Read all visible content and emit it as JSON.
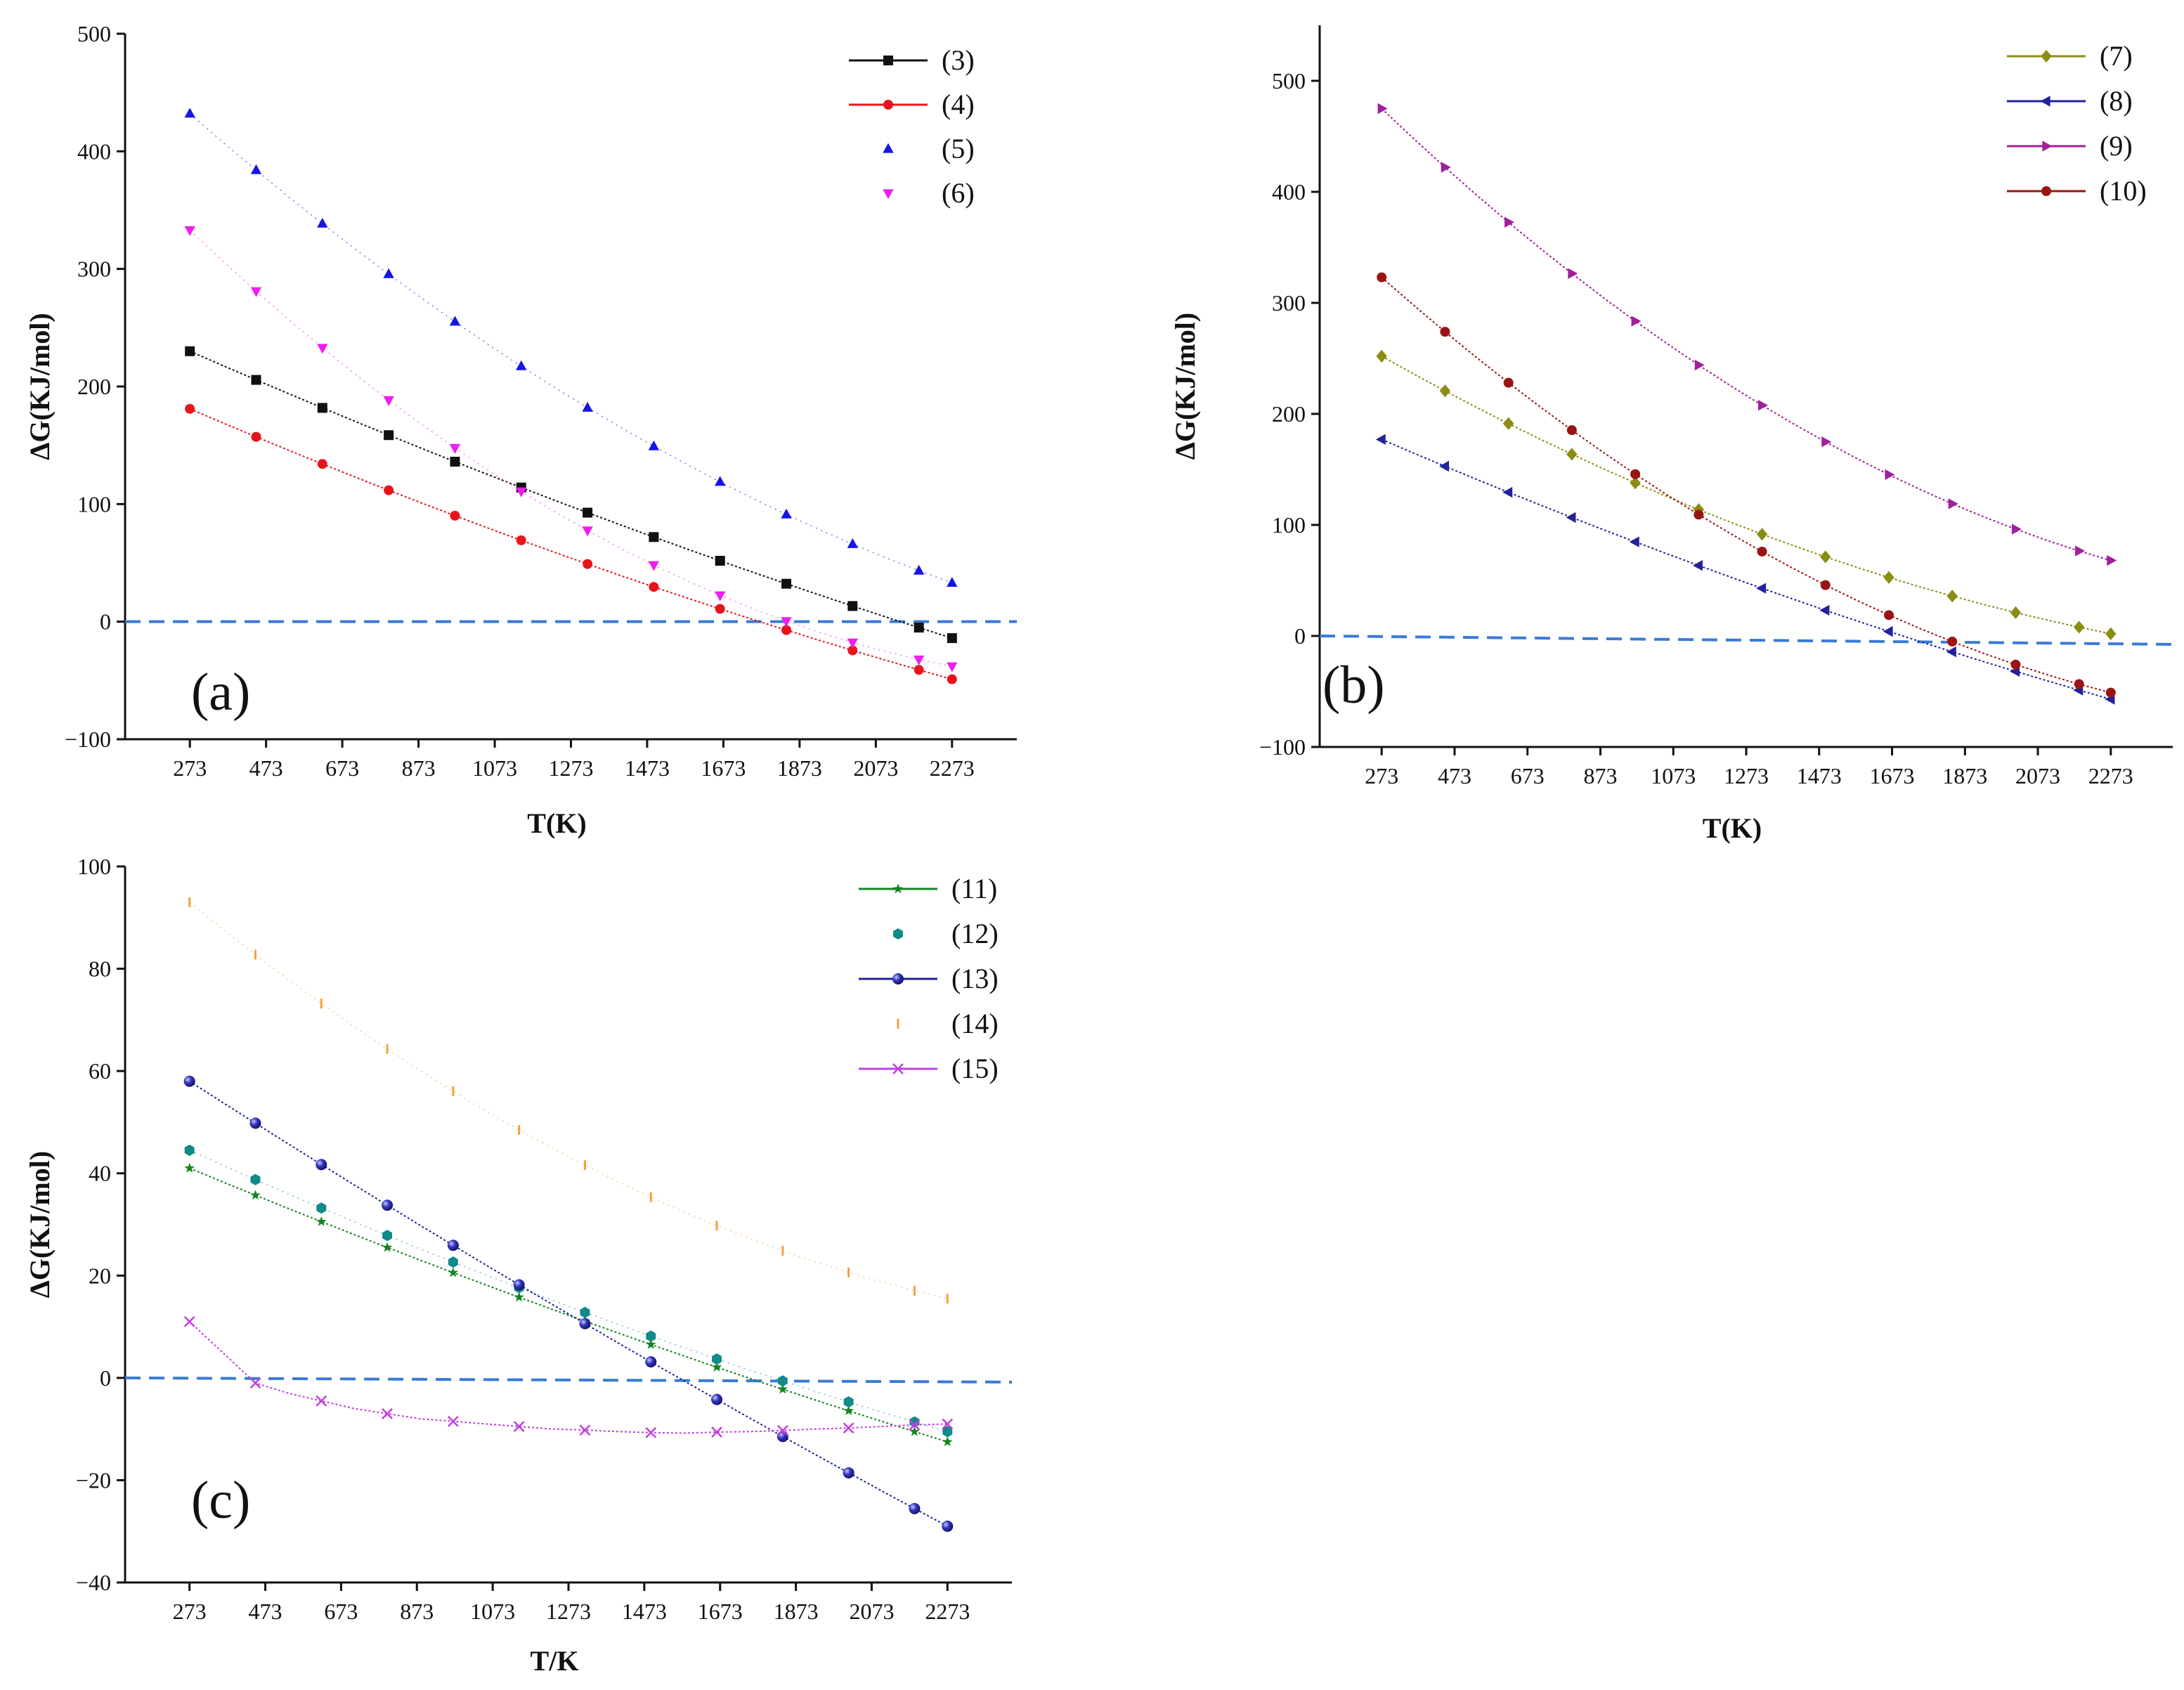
{
  "chart_data": [
    {
      "type": "line",
      "panel_label": "(a)",
      "xlabel": "T(K)",
      "ylabel": "ΔG(KJ/mol)",
      "xlim": [
        103,
        2443
      ],
      "ylim": [
        -100,
        500
      ],
      "xticks": [
        273,
        473,
        673,
        873,
        1073,
        1273,
        1473,
        1673,
        1873,
        2073,
        2273
      ],
      "xtick_labels": [
        "273",
        "473",
        "673",
        "873",
        "1073",
        "1273",
        "1473",
        "1673",
        "1873",
        "2073",
        "2273"
      ],
      "yticks": [
        -100,
        0,
        100,
        200,
        300,
        400,
        500
      ],
      "ytick_labels": [
        "−100",
        "0",
        "100",
        "200",
        "300",
        "400",
        "500"
      ],
      "legend_position": "top-right",
      "reference_line": 0,
      "series": [
        {
          "name": "(3)",
          "color": "#111111",
          "marker": "square",
          "line": true,
          "y_start": 230,
          "y_end": -14,
          "curvature": -10
        },
        {
          "name": "(4)",
          "color": "#e8141c",
          "marker": "circle",
          "line": true,
          "y_start": 181,
          "y_end": -49,
          "curvature": -12
        },
        {
          "name": "(5)",
          "color": "#1515e8",
          "marker": "triangle-up",
          "line": false,
          "y_start": 432,
          "y_end": 33,
          "curvature": -42
        },
        {
          "name": "(6)",
          "color": "#f01df0",
          "marker": "triangle-down",
          "line": false,
          "y_start": 333,
          "y_end": -38,
          "curvature": -62
        }
      ]
    },
    {
      "type": "line",
      "panel_label": "(b)",
      "xlabel": "T(K)",
      "ylabel": "ΔG(KJ/mol)",
      "xlim": [
        103,
        2443
      ],
      "ylim": [
        -100,
        550
      ],
      "xticks": [
        273,
        473,
        673,
        873,
        1073,
        1273,
        1473,
        1673,
        1873,
        2073,
        2273
      ],
      "xtick_labels": [
        "273",
        "473",
        "673",
        "873",
        "1073",
        "1273",
        "1473",
        "1673",
        "1873",
        "2073",
        "2273"
      ],
      "yticks": [
        -100,
        0,
        100,
        200,
        300,
        400,
        500
      ],
      "ytick_labels": [
        "−100",
        "0",
        "100",
        "200",
        "300",
        "400",
        "500"
      ],
      "legend_position": "top-right",
      "reference_line": 0,
      "series": [
        {
          "name": "(7)",
          "color": "#8c8c14",
          "marker": "diamond",
          "line": true,
          "y_start": 252,
          "y_end": 2,
          "curvature": -30
        },
        {
          "name": "(8)",
          "color": "#22229a",
          "marker": "triangle-left",
          "line": true,
          "y_start": 177,
          "y_end": -57,
          "curvature": -12
        },
        {
          "name": "(9)",
          "color": "#a0209a",
          "marker": "triangle-right",
          "line": true,
          "y_start": 475,
          "y_end": 68,
          "curvature": -55
        },
        {
          "name": "(10)",
          "color": "#9a1414",
          "marker": "circle",
          "line": true,
          "y_start": 323,
          "y_end": -51,
          "curvature": -52
        }
      ]
    },
    {
      "type": "line",
      "panel_label": "(c)",
      "xlabel": "T/K",
      "ylabel": "ΔG(KJ/mol)",
      "xlim": [
        103,
        2443
      ],
      "ylim": [
        -40,
        100
      ],
      "xticks": [
        273,
        473,
        673,
        873,
        1073,
        1273,
        1473,
        1673,
        1873,
        2073,
        2273
      ],
      "xtick_labels": [
        "273",
        "473",
        "673",
        "873",
        "1073",
        "1273",
        "1473",
        "1673",
        "1873",
        "2073",
        "2273"
      ],
      "yticks": [
        -40,
        -20,
        0,
        20,
        40,
        60,
        80,
        100
      ],
      "ytick_labels": [
        "−40",
        "−20",
        "0",
        "20",
        "40",
        "60",
        "80",
        "100"
      ],
      "legend_position": "top-right",
      "reference_line": 0,
      "series": [
        {
          "name": "(11)",
          "color": "#15851f",
          "marker": "star",
          "line": true,
          "y_start": 41,
          "y_end": -12.5,
          "curvature": -2
        },
        {
          "name": "(12)",
          "color": "#108a8a",
          "marker": "hexagon",
          "line": false,
          "y_start": 44.5,
          "y_end": -10.5,
          "curvature": -3
        },
        {
          "name": "(13)",
          "color": "#22229a",
          "marker": "sphere",
          "line": true,
          "y_start": 58,
          "y_end": -29,
          "curvature": -2
        },
        {
          "name": "(14)",
          "color": "#f5a040",
          "marker": "vline",
          "line": false,
          "y_start": 93,
          "y_end": 15.5,
          "curvature": -11
        },
        {
          "name": "(15)",
          "color": "#c040e0",
          "marker": "x",
          "line": true,
          "y": [
            11,
            5,
            -1,
            -3,
            -4.5,
            -6,
            -7,
            -8,
            -8.5,
            -9,
            -9.5,
            -10,
            -10.2,
            -10.5,
            -10.7,
            -10.8,
            -10.6,
            -10.5,
            -10.3,
            -10,
            -9.8,
            -9.5,
            -9.2,
            -9
          ]
        }
      ]
    }
  ]
}
